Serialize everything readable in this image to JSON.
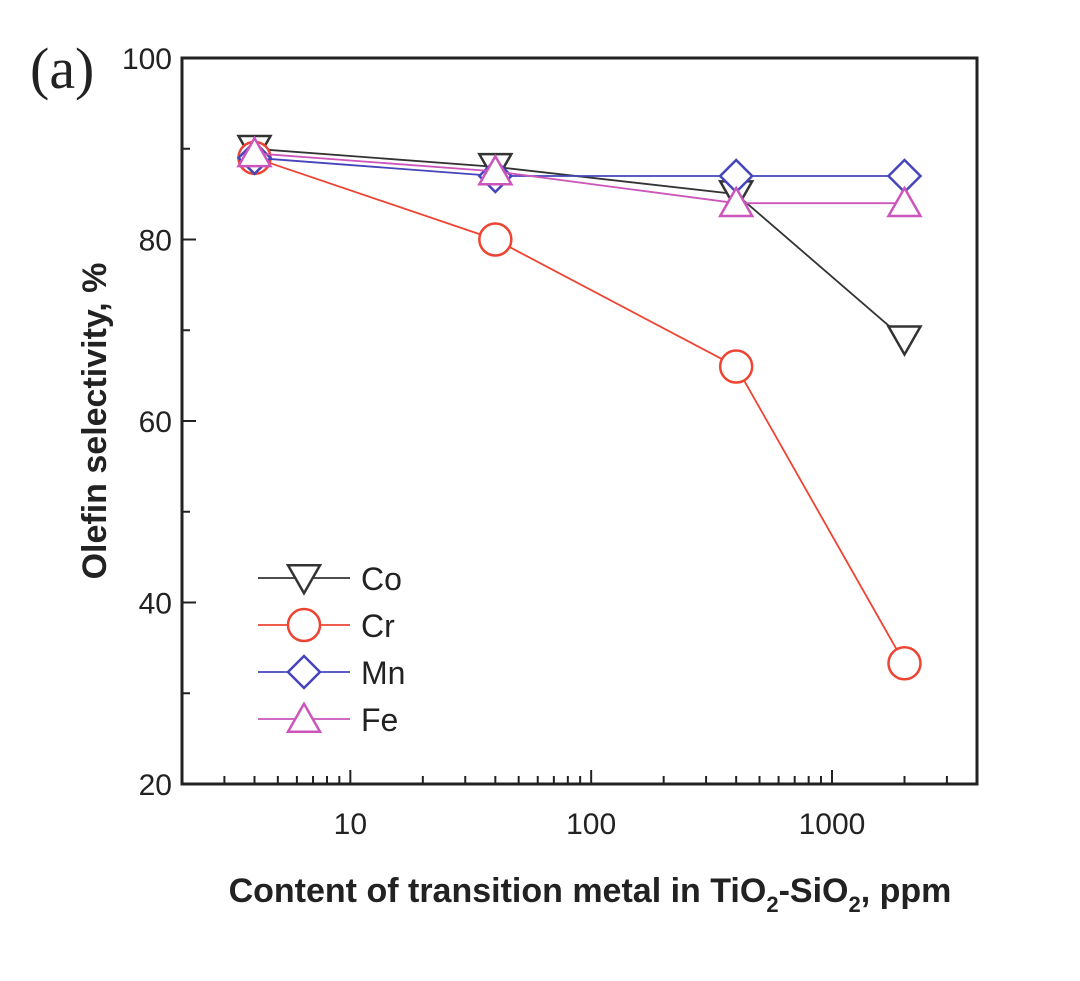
{
  "panel_label": "(a)",
  "chart_data": {
    "type": "line",
    "xlabel": {
      "main": "Content of transition metal in TiO",
      "sub1": "2",
      "mid": "-SiO",
      "sub2": "2",
      "tail": ", ppm"
    },
    "ylabel": "Olefin selectivity, %",
    "xscale": "log",
    "xlim": [
      2,
      4000
    ],
    "ylim": [
      20,
      100
    ],
    "xticks": [
      10,
      100,
      1000
    ],
    "xtick_labels": [
      "10",
      "100",
      "1000"
    ],
    "yticks": [
      20,
      40,
      60,
      80,
      100
    ],
    "ytick_labels": [
      "20",
      "40",
      "60",
      "80",
      "100"
    ],
    "legend_position": "bottom-left",
    "grid": false,
    "series": [
      {
        "name": "Co",
        "marker": "triangle-down",
        "color": "#333333",
        "x": [
          4,
          40,
          400,
          2000
        ],
        "y": [
          90,
          88,
          85,
          69
        ]
      },
      {
        "name": "Cr",
        "marker": "circle",
        "color": "#ee4433",
        "x": [
          4,
          40,
          400,
          2000
        ],
        "y": [
          89,
          80,
          66,
          33.3
        ]
      },
      {
        "name": "Mn",
        "marker": "diamond",
        "color": "#4444bb",
        "x": [
          4,
          40,
          400,
          2000
        ],
        "y": [
          89,
          87,
          87,
          87
        ]
      },
      {
        "name": "Fe",
        "marker": "triangle-up",
        "color": "#cc55bb",
        "x": [
          4,
          40,
          400,
          2000
        ],
        "y": [
          89.5,
          87.5,
          84,
          84
        ]
      }
    ]
  }
}
